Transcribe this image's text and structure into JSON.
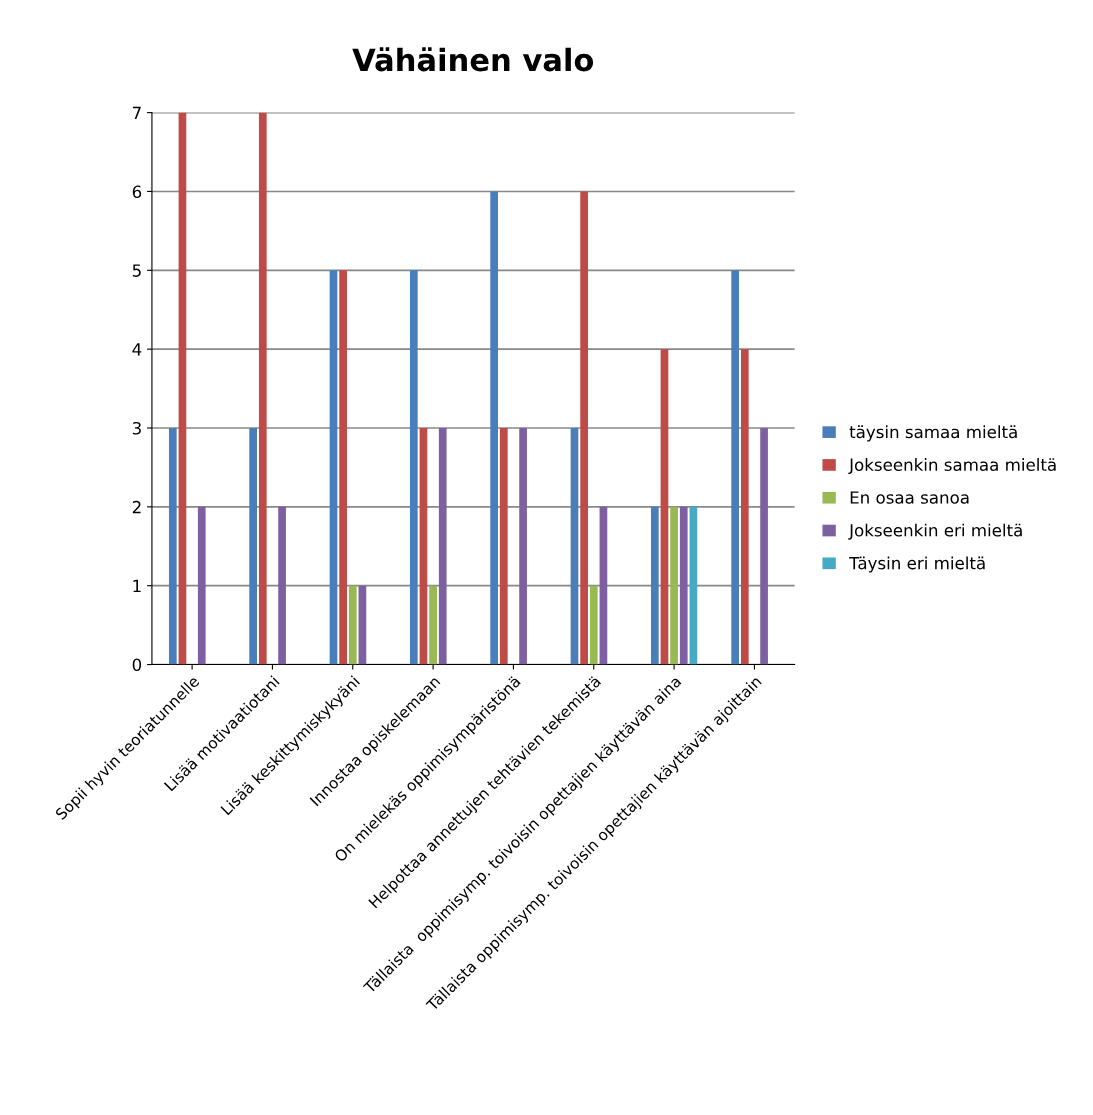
{
  "chart_data": {
    "type": "bar",
    "title": "Vähäinen valo",
    "categories": [
      "Sopii hyvin teoriatunnelle",
      "Lisää motivaatiotani",
      "Lisää keskittymiskykyäni",
      "Innostaa opiskelemaan",
      "On mielekäs oppimisympäristönä",
      "Helpottaa annettujen tehtävien tekemistä",
      "Tällaista  oppimisymp. toivoisin opettajien käyttävän aina",
      "Tällaista oppimisymp. toivoisin opettajien käyttävän ajoittain"
    ],
    "series": [
      {
        "name": "täysin samaa mieltä",
        "color": "#4a7ebb",
        "values": [
          3,
          3,
          5,
          5,
          6,
          3,
          2,
          5
        ]
      },
      {
        "name": "Jokseenkin samaa mieltä",
        "color": "#be4b48",
        "values": [
          7,
          7,
          5,
          3,
          3,
          6,
          4,
          4
        ]
      },
      {
        "name": "En osaa sanoa",
        "color": "#98b954",
        "values": [
          0,
          0,
          1,
          1,
          0,
          1,
          2,
          0
        ]
      },
      {
        "name": "Jokseenkin eri mieltä",
        "color": "#7d60a0",
        "values": [
          2,
          2,
          1,
          3,
          3,
          2,
          2,
          3
        ]
      },
      {
        "name": "Täysin eri mieltä",
        "color": "#46aac5",
        "values": [
          0,
          0,
          0,
          0,
          0,
          0,
          2,
          0
        ]
      }
    ],
    "ylim": [
      0,
      7
    ],
    "yticks": [
      0,
      1,
      2,
      3,
      4,
      5,
      6,
      7
    ],
    "grid": "y",
    "legend": "right"
  }
}
